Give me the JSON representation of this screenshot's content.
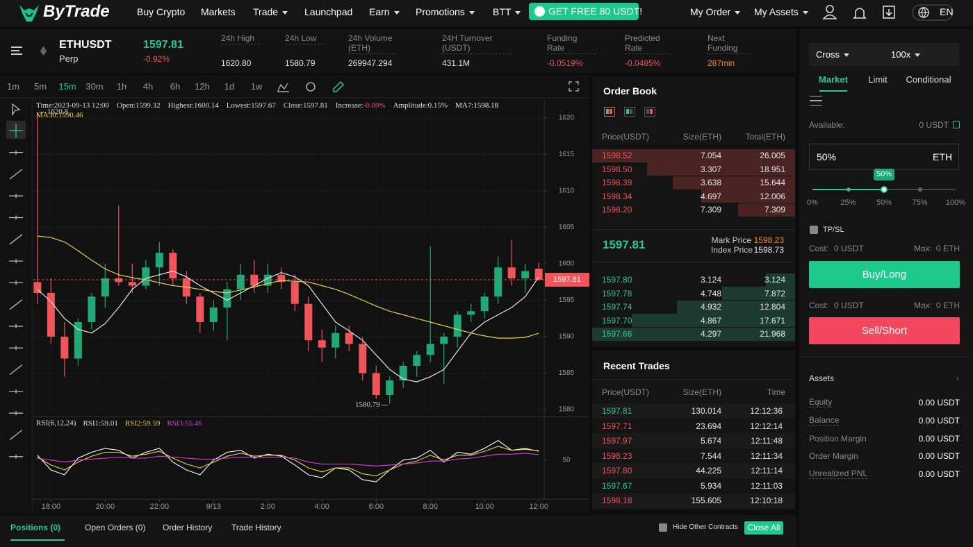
{
  "nav": {
    "logo": "ByTrade",
    "items": [
      {
        "label": "Buy Crypto",
        "dropdown": false
      },
      {
        "label": "Markets",
        "dropdown": false
      },
      {
        "label": "Trade",
        "dropdown": true
      },
      {
        "label": "Launchpad",
        "dropdown": false
      },
      {
        "label": "Earn",
        "dropdown": true
      },
      {
        "label": "Promotions",
        "dropdown": true
      },
      {
        "label": "BTT",
        "dropdown": true
      }
    ],
    "promo": "GET FREE 80 USDT!",
    "right_items": [
      {
        "label": "My Order",
        "dropdown": true
      },
      {
        "label": "My Assets",
        "dropdown": true
      }
    ],
    "language": "EN"
  },
  "ticker": {
    "symbol": "ETHUSDT",
    "contract": "Perp",
    "price": "1597.81",
    "change": "-0.92%",
    "stats": [
      {
        "label": "24h High",
        "value": "1620.80",
        "tone": "neutral"
      },
      {
        "label": "24h Low",
        "value": "1580.79",
        "tone": "neutral"
      },
      {
        "label": "24h Volume (ETH)",
        "value": "269947.294",
        "tone": "neutral"
      },
      {
        "label": "24H Turnover (USDT)",
        "value": "431.1M",
        "tone": "neutral"
      },
      {
        "label": "Funding Rate",
        "value": "-0.0519%",
        "tone": "down"
      },
      {
        "label": "Predicted Rate",
        "value": "-0.0485%",
        "tone": "down"
      },
      {
        "label": "Next Funding",
        "value": "287min",
        "tone": "warn"
      }
    ]
  },
  "toolbar": {
    "intervals": [
      "1m",
      "5m",
      "15m",
      "30m",
      "1h",
      "4h",
      "6h",
      "12h",
      "1d",
      "1w"
    ],
    "active": 2
  },
  "chart_data": {
    "type": "candlestick",
    "legend": [
      {
        "label": "Time:",
        "value": "2023-09-13 12:00"
      },
      {
        "label": "Open:",
        "value": "1599.32"
      },
      {
        "label": "Highest:",
        "value": "1600.14"
      },
      {
        "label": "Lowest:",
        "value": "1597.67"
      },
      {
        "label": "Close:",
        "value": "1597.81"
      },
      {
        "label": "Increase:",
        "value": "-0.09%",
        "tone": "down"
      },
      {
        "label": "Amplitude:",
        "value": "0.15%"
      }
    ],
    "up_color": "#20a877",
    "down_color": "#f0555a",
    "candles": [
      [
        1597.5,
        1620.8,
        1594.5,
        1596
      ],
      [
        1596,
        1598,
        1589,
        1590
      ],
      [
        1590,
        1592,
        1584.5,
        1587
      ],
      [
        1587,
        1592.5,
        1586,
        1592
      ],
      [
        1592,
        1596,
        1591,
        1595.5
      ],
      [
        1595.5,
        1600,
        1594,
        1598
      ],
      [
        1598,
        1608,
        1597,
        1597.5
      ],
      [
        1597.5,
        1600,
        1596,
        1597
      ],
      [
        1597,
        1600.5,
        1596.5,
        1599.5
      ],
      [
        1599.5,
        1603,
        1597,
        1601.5
      ],
      [
        1601.5,
        1602,
        1597,
        1598
      ],
      [
        1598,
        1599,
        1594.5,
        1595.5
      ],
      [
        1595.5,
        1596,
        1590.5,
        1592
      ],
      [
        1592,
        1595,
        1590.8,
        1594
      ],
      [
        1594,
        1597.5,
        1589.5,
        1596.5
      ],
      [
        1596.5,
        1600,
        1595,
        1598.5
      ],
      [
        1598.5,
        1600.5,
        1596,
        1597
      ],
      [
        1597,
        1600,
        1596,
        1598.5
      ],
      [
        1598.5,
        1599.5,
        1596.5,
        1597.5
      ],
      [
        1597.5,
        1598.5,
        1593.5,
        1594.5
      ],
      [
        1594.5,
        1595.5,
        1588,
        1589.5
      ],
      [
        1589.5,
        1591,
        1586.5,
        1588.5
      ],
      [
        1588.5,
        1591.5,
        1587,
        1590.5
      ],
      [
        1590.5,
        1591.5,
        1588,
        1589
      ],
      [
        1589,
        1590,
        1584,
        1585
      ],
      [
        1585,
        1586,
        1581.5,
        1582
      ],
      [
        1582,
        1584.5,
        1580.79,
        1584
      ],
      [
        1584,
        1586.5,
        1583,
        1586
      ],
      [
        1586,
        1588,
        1584.5,
        1587.5
      ],
      [
        1587.5,
        1602.4,
        1586.5,
        1589
      ],
      [
        1589,
        1590.5,
        1583.5,
        1590
      ],
      [
        1590,
        1593.5,
        1588.5,
        1593
      ],
      [
        1593,
        1594.5,
        1592,
        1593.5
      ],
      [
        1593.5,
        1596,
        1592.5,
        1595.5
      ],
      [
        1595.5,
        1601,
        1594.5,
        1599.5
      ],
      [
        1599.5,
        1603.3,
        1597,
        1598
      ],
      [
        1598,
        1600,
        1596,
        1599
      ],
      [
        1599.32,
        1600.14,
        1597.67,
        1597.81
      ]
    ],
    "lines": [
      {
        "label": "MA7:",
        "color": "#e8e8e8",
        "values": [
          1596.5,
          1594.8,
          1592.5,
          1591,
          1590.5,
          1591.8,
          1594,
          1596.5,
          1598,
          1598.5,
          1599,
          1598.2,
          1597,
          1596,
          1595,
          1596,
          1597,
          1598,
          1598.8,
          1598.2,
          1597,
          1594.5,
          1592,
          1590.8,
          1589.5,
          1587.5,
          1585.5,
          1584.2,
          1583.8,
          1584.5,
          1585.5,
          1588,
          1590.5,
          1592,
          1593,
          1594,
          1595.5,
          1598.18
        ]
      },
      {
        "label": "MA30:",
        "color": "#e6d44a",
        "values": [
          1603.8,
          1603.6,
          1603,
          1601.8,
          1600.5,
          1599.3,
          1598.5,
          1598.1,
          1597.8,
          1597.4,
          1597,
          1596.8,
          1596.5,
          1596.2,
          1596,
          1596.4,
          1596.8,
          1597.3,
          1597.7,
          1597.6,
          1597.5,
          1597,
          1596.5,
          1595.8,
          1595,
          1594.2,
          1593.5,
          1593,
          1592.5,
          1592,
          1591.5,
          1591,
          1590.5,
          1590.1,
          1589.8,
          1589.8,
          1589.9,
          1590.46
        ]
      }
    ],
    "xlim": [
      -0.3,
      37.4
    ],
    "xticks": [
      {
        "value": 1,
        "label": "18:00"
      },
      {
        "value": 5,
        "label": "20:00"
      },
      {
        "value": 9,
        "label": "22:00"
      },
      {
        "value": 13,
        "label": "9/13"
      },
      {
        "value": 17,
        "label": "2:00"
      },
      {
        "value": 21,
        "label": "4:00"
      },
      {
        "value": 25,
        "label": "6:00"
      },
      {
        "value": 29,
        "label": "8:00"
      },
      {
        "value": 33,
        "label": "10:00"
      },
      {
        "value": 37,
        "label": "12:00"
      }
    ],
    "ylim": [
      1579,
      1622.4
    ],
    "yticks": [
      1580,
      1585,
      1590,
      1595,
      1600,
      1605,
      1610,
      1615,
      1620
    ],
    "last_price": 1597.81,
    "grid": true,
    "rsi": {
      "label": "RSI(6,12,24)",
      "ylim": [
        11,
        93
      ],
      "yticks": [
        50
      ],
      "lines": [
        {
          "label": "RSI1:",
          "color": "#ffffff",
          "values": [
            55,
            40,
            35,
            52,
            58,
            62,
            60,
            52,
            58,
            62,
            48,
            40,
            35,
            50,
            58,
            60,
            52,
            56,
            54,
            45,
            35,
            32,
            42,
            40,
            30,
            28,
            40,
            50,
            52,
            60,
            48,
            58,
            56,
            62,
            70,
            60,
            62,
            59.01
          ]
        },
        {
          "label": "RSI2:",
          "color": "#e6d44a",
          "values": [
            53,
            45,
            40,
            48,
            54,
            58,
            58,
            54,
            56,
            59,
            52,
            46,
            42,
            48,
            54,
            57,
            54,
            55,
            55,
            50,
            42,
            38,
            42,
            42,
            36,
            34,
            40,
            46,
            49,
            55,
            50,
            55,
            55,
            59,
            64,
            60,
            61,
            59.59
          ]
        },
        {
          "label": "RSI3:",
          "color": "#d63fe0",
          "values": [
            52,
            50,
            48,
            50,
            51,
            52,
            53,
            52,
            52,
            54,
            53,
            52,
            51,
            51,
            52,
            53,
            53,
            53,
            53,
            52,
            48,
            46,
            46,
            46,
            45,
            44,
            45,
            46,
            47,
            49,
            49,
            51,
            52,
            54,
            56,
            56,
            57,
            55.46
          ]
        }
      ]
    }
  },
  "order_book": {
    "title": "Order Book",
    "headers": [
      "Price(USDT)",
      "Size(ETH)",
      "Total(ETH)"
    ],
    "asks": [
      [
        "1598.52",
        "7.054",
        "26.005"
      ],
      [
        "1598.50",
        "3.307",
        "18.951"
      ],
      [
        "1598.39",
        "3.638",
        "15.644"
      ],
      [
        "1598.34",
        "4.697",
        "12.006"
      ],
      [
        "1598.20",
        "7.309",
        "7.309"
      ]
    ],
    "last_price": "1597.81",
    "mark_label": "Mark Price",
    "mark_price": "1598.23",
    "index_label": "Index Price",
    "index_price": "1598.73",
    "bids": [
      [
        "1597.80",
        "3.124",
        "3.124"
      ],
      [
        "1597.78",
        "4.748",
        "7.872"
      ],
      [
        "1597.74",
        "4.932",
        "12.804"
      ],
      [
        "1597.70",
        "4.867",
        "17.671"
      ],
      [
        "1597.66",
        "4.297",
        "21.968"
      ]
    ]
  },
  "recent_trades": {
    "title": "Recent Trades",
    "headers": [
      "Price(USDT)",
      "Size(ETH)",
      "Time"
    ],
    "rows": [
      {
        "price": "1597.81",
        "size": "130.014",
        "time": "12:12:36",
        "side": "buy"
      },
      {
        "price": "1597.71",
        "size": "23.694",
        "time": "12:12:14",
        "side": "sell"
      },
      {
        "price": "1597.97",
        "size": "5.674",
        "time": "12:11:48",
        "side": "sell"
      },
      {
        "price": "1598.23",
        "size": "7.544",
        "time": "12:11:34",
        "side": "sell"
      },
      {
        "price": "1597.80",
        "size": "44.225",
        "time": "12:11:14",
        "side": "sell"
      },
      {
        "price": "1597.67",
        "size": "5.934",
        "time": "12:11:03",
        "side": "buy"
      },
      {
        "price": "1598.18",
        "size": "155.605",
        "time": "12:10:18",
        "side": "sell"
      }
    ]
  },
  "order_form": {
    "margin_mode": "Cross",
    "leverage": "100x",
    "tabs": [
      "Market",
      "Limit",
      "Conditional"
    ],
    "active_tab": 0,
    "available_label": "Available:",
    "available_value": "0 USDT",
    "amount": "50%",
    "amount_unit": "ETH",
    "slider": {
      "bubble": "50%",
      "marks": [
        "0%",
        "25%",
        "50%",
        "75%",
        "100%"
      ],
      "position": 2
    },
    "tpsl_label": "TP/SL",
    "tpsl_checked": true,
    "buy": {
      "cost_label": "Cost:",
      "cost": "0 USDT",
      "max_label": "Max:",
      "max": "0 ETH",
      "button": "Buy/Long"
    },
    "sell": {
      "cost_label": "Cost:",
      "cost": "0 USDT",
      "max_label": "Max:",
      "max": "0 ETH",
      "button": "Sell/Short"
    }
  },
  "assets": {
    "title": "Assets",
    "rows": [
      {
        "label": "Equity",
        "value": "0.00 USDT",
        "underline": true
      },
      {
        "label": "Balance",
        "value": "0.00 USDT",
        "underline": true
      },
      {
        "label": "Position Margin",
        "value": "0.00 USDT",
        "underline": false
      },
      {
        "label": "Order Margin",
        "value": "0.00 USDT",
        "underline": false
      },
      {
        "label": "Unrealized PNL",
        "value": "0.00 USDT",
        "underline": true
      }
    ]
  },
  "bottom_tabs": {
    "tabs": [
      "Positions (0)",
      "Open Orders (0)",
      "Order History",
      "Trade History"
    ],
    "active": 0,
    "hide_label": "Hide Other Contracts",
    "hide_checked": true,
    "close_all": "Close All"
  }
}
